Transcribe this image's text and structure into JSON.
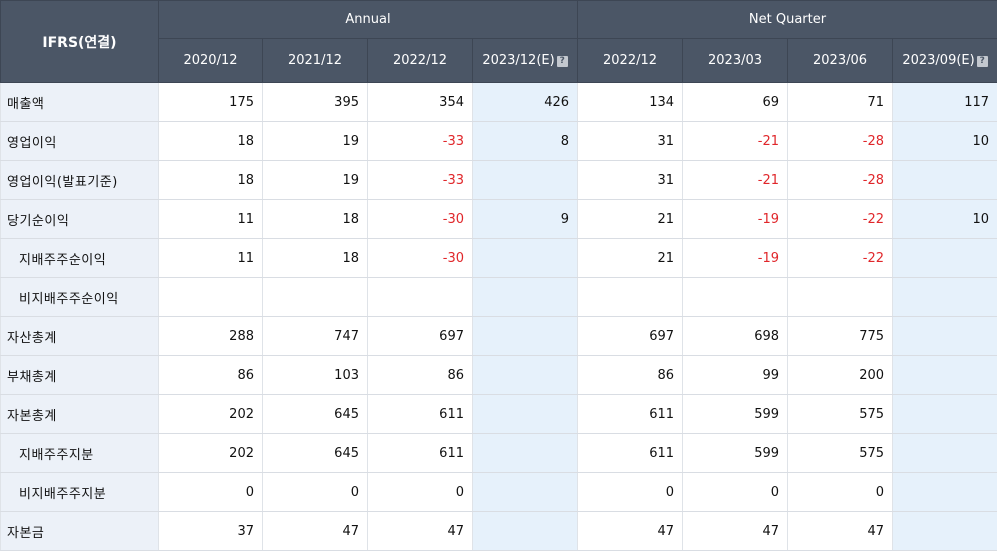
{
  "header": {
    "corner": "IFRS(연결)",
    "groups": [
      {
        "label": "Annual"
      },
      {
        "label": "Net Quarter"
      }
    ],
    "columns": [
      {
        "label": "2020/12",
        "estimate": false
      },
      {
        "label": "2021/12",
        "estimate": false
      },
      {
        "label": "2022/12",
        "estimate": false
      },
      {
        "label": "2023/12(E)",
        "estimate": true
      },
      {
        "label": "2022/12",
        "estimate": false
      },
      {
        "label": "2023/03",
        "estimate": false
      },
      {
        "label": "2023/06",
        "estimate": false
      },
      {
        "label": "2023/09(E)",
        "estimate": true
      }
    ],
    "help_glyph": "?"
  },
  "rows": [
    {
      "label": "매출액",
      "sub": false,
      "values": [
        "175",
        "395",
        "354",
        "426",
        "134",
        "69",
        "71",
        "117"
      ]
    },
    {
      "label": "영업이익",
      "sub": false,
      "values": [
        "18",
        "19",
        "-33",
        "8",
        "31",
        "-21",
        "-28",
        "10"
      ]
    },
    {
      "label": "영업이익(발표기준)",
      "sub": false,
      "values": [
        "18",
        "19",
        "-33",
        "",
        "31",
        "-21",
        "-28",
        ""
      ]
    },
    {
      "label": "당기순이익",
      "sub": false,
      "values": [
        "11",
        "18",
        "-30",
        "9",
        "21",
        "-19",
        "-22",
        "10"
      ]
    },
    {
      "label": "지배주주순이익",
      "sub": true,
      "values": [
        "11",
        "18",
        "-30",
        "",
        "21",
        "-19",
        "-22",
        ""
      ]
    },
    {
      "label": "비지배주주순이익",
      "sub": true,
      "values": [
        "",
        "",
        "",
        "",
        "",
        "",
        "",
        ""
      ]
    },
    {
      "label": "자산총계",
      "sub": false,
      "values": [
        "288",
        "747",
        "697",
        "",
        "697",
        "698",
        "775",
        ""
      ]
    },
    {
      "label": "부채총계",
      "sub": false,
      "values": [
        "86",
        "103",
        "86",
        "",
        "86",
        "99",
        "200",
        ""
      ]
    },
    {
      "label": "자본총계",
      "sub": false,
      "values": [
        "202",
        "645",
        "611",
        "",
        "611",
        "599",
        "575",
        ""
      ]
    },
    {
      "label": "지배주주지분",
      "sub": true,
      "values": [
        "202",
        "645",
        "611",
        "",
        "611",
        "599",
        "575",
        ""
      ]
    },
    {
      "label": "비지배주주지분",
      "sub": true,
      "values": [
        "0",
        "0",
        "0",
        "",
        "0",
        "0",
        "0",
        ""
      ]
    },
    {
      "label": "자본금",
      "sub": false,
      "values": [
        "37",
        "47",
        "47",
        "",
        "47",
        "47",
        "47",
        ""
      ]
    }
  ],
  "colors": {
    "header_bg": "#4b5666",
    "label_bg": "#ecf1f8",
    "estimate_bg": "#e6f1fb",
    "negative": "#e0262a"
  }
}
